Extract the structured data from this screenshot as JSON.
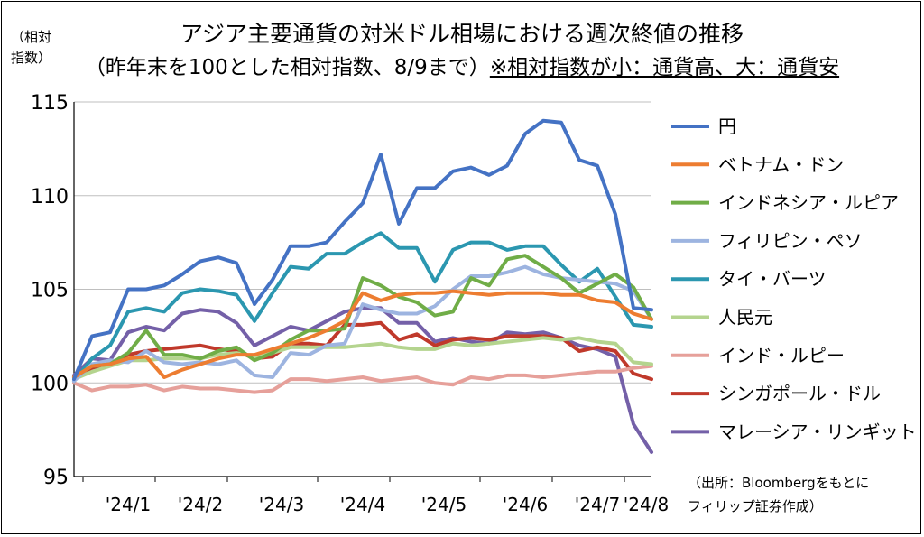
{
  "title": "アジア主要通貨の対米ドル相場における週次終値の推移",
  "subtitle": "（昨年末を100とした相対指数、8/9まで）",
  "subtitle_note": "※相対指数が小：通貨高、大：通貨安",
  "ylabel_line1": "（相対",
  "ylabel_line2": "指数）",
  "source_line1": "（出所：Bloombergをもとに",
  "source_line2": "フィリップ証券作成）",
  "chart_data": {
    "type": "line",
    "ylim": [
      95,
      115
    ],
    "yticks": [
      "95",
      "100",
      "105",
      "110",
      "115"
    ],
    "xticks": [
      "'24/1",
      "'24/2",
      "'24/3",
      "'24/4",
      "'24/5",
      "'24/6",
      "'24/7",
      "'24/8"
    ],
    "x_weeks": [
      "2023-12-29",
      "2024-01-05",
      "2024-01-12",
      "2024-01-19",
      "2024-01-26",
      "2024-02-02",
      "2024-02-09",
      "2024-02-16",
      "2024-02-23",
      "2024-03-01",
      "2024-03-08",
      "2024-03-15",
      "2024-03-22",
      "2024-03-29",
      "2024-04-05",
      "2024-04-12",
      "2024-04-19",
      "2024-04-26",
      "2024-05-03",
      "2024-05-10",
      "2024-05-17",
      "2024-05-24",
      "2024-05-31",
      "2024-06-07",
      "2024-06-14",
      "2024-06-21",
      "2024-06-28",
      "2024-07-05",
      "2024-07-12",
      "2024-07-19",
      "2024-07-26",
      "2024-08-02",
      "2024-08-09"
    ],
    "legend_position": "right",
    "series": [
      {
        "name": "円",
        "color": "#4472C4",
        "values": [
          100.2,
          102.5,
          102.7,
          105.0,
          105.0,
          105.2,
          105.8,
          106.5,
          106.7,
          106.4,
          104.2,
          105.5,
          107.3,
          107.3,
          107.5,
          108.6,
          109.6,
          112.2,
          108.5,
          110.4,
          110.4,
          111.3,
          111.5,
          111.1,
          111.6,
          113.3,
          114.0,
          113.9,
          111.9,
          111.6,
          109.0,
          104.0,
          103.9
        ]
      },
      {
        "name": "ベトナム・ドン",
        "color": "#ED7D31",
        "values": [
          100.3,
          100.9,
          101.0,
          101.3,
          101.4,
          100.3,
          100.7,
          101.0,
          101.3,
          101.5,
          101.5,
          101.8,
          102.1,
          102.4,
          102.8,
          103.3,
          104.8,
          104.4,
          104.7,
          104.8,
          104.8,
          104.9,
          104.8,
          104.7,
          104.8,
          104.8,
          104.8,
          104.7,
          104.7,
          104.4,
          104.3,
          103.7,
          103.4
        ]
      },
      {
        "name": "インドネシア・ルピア",
        "color": "#70AD47",
        "values": [
          100.3,
          100.9,
          101.0,
          101.6,
          102.8,
          101.5,
          101.5,
          101.3,
          101.7,
          101.9,
          101.2,
          101.6,
          102.3,
          102.8,
          102.8,
          102.9,
          105.6,
          105.2,
          104.6,
          104.3,
          103.6,
          103.8,
          105.6,
          105.2,
          106.6,
          106.8,
          106.2,
          105.6,
          104.8,
          105.3,
          105.8,
          105.1,
          103.4
        ]
      },
      {
        "name": "フィリピン・ペソ",
        "color": "#9DB4E0",
        "values": [
          100.1,
          101.0,
          101.2,
          101.1,
          101.7,
          101.1,
          101.0,
          101.1,
          101.0,
          101.2,
          100.4,
          100.3,
          101.6,
          101.5,
          102.0,
          102.1,
          104.2,
          103.9,
          103.7,
          103.7,
          104.1,
          105.0,
          105.7,
          105.7,
          105.9,
          106.2,
          105.8,
          105.6,
          105.5,
          105.4,
          105.3,
          104.9,
          103.4
        ]
      },
      {
        "name": "タイ・バーツ",
        "color": "#2B97B0",
        "values": [
          100.1,
          101.3,
          102.0,
          103.8,
          104.0,
          103.8,
          104.8,
          105.0,
          104.9,
          104.7,
          103.3,
          104.8,
          106.2,
          106.1,
          106.9,
          106.9,
          107.5,
          108.0,
          107.2,
          107.2,
          105.4,
          107.1,
          107.5,
          107.5,
          107.1,
          107.3,
          107.3,
          106.3,
          105.4,
          106.1,
          104.6,
          103.1,
          103.0
        ]
      },
      {
        "name": "人民元",
        "color": "#B4D48E",
        "values": [
          100.2,
          100.6,
          100.9,
          101.2,
          101.2,
          101.3,
          101.3,
          101.3,
          101.5,
          101.6,
          101.4,
          101.6,
          101.9,
          101.9,
          101.9,
          101.9,
          102.0,
          102.1,
          101.9,
          101.8,
          101.8,
          102.1,
          102.0,
          102.1,
          102.2,
          102.3,
          102.4,
          102.3,
          102.4,
          102.2,
          102.1,
          101.1,
          101.0
        ]
      },
      {
        "name": "インド・ルピー",
        "color": "#E6A09A",
        "values": [
          100.0,
          99.6,
          99.8,
          99.8,
          99.9,
          99.6,
          99.8,
          99.7,
          99.7,
          99.6,
          99.5,
          99.6,
          100.2,
          100.2,
          100.1,
          100.2,
          100.3,
          100.1,
          100.2,
          100.3,
          100.0,
          99.9,
          100.3,
          100.2,
          100.4,
          100.4,
          100.3,
          100.4,
          100.5,
          100.6,
          100.6,
          100.8,
          100.9
        ]
      },
      {
        "name": "シンガポール・ドル",
        "color": "#C0392B",
        "values": [
          100.3,
          100.8,
          101.0,
          101.5,
          101.7,
          101.8,
          101.9,
          102.0,
          101.8,
          101.7,
          101.3,
          101.4,
          102.1,
          102.1,
          102.0,
          103.1,
          103.1,
          103.2,
          102.3,
          102.6,
          102.0,
          102.3,
          102.4,
          102.3,
          102.5,
          102.5,
          102.5,
          102.4,
          101.7,
          101.9,
          101.7,
          100.5,
          100.2
        ]
      },
      {
        "name": "マレーシア・リンギット",
        "color": "#7460A8",
        "values": [
          100.4,
          101.3,
          101.2,
          102.7,
          103.0,
          102.8,
          103.7,
          103.9,
          103.8,
          103.2,
          102.0,
          102.5,
          103.0,
          102.8,
          103.3,
          103.8,
          104.0,
          104.0,
          103.2,
          103.2,
          102.2,
          102.4,
          102.2,
          102.1,
          102.7,
          102.6,
          102.7,
          102.4,
          102.0,
          101.8,
          101.4,
          97.8,
          96.3
        ]
      }
    ]
  }
}
